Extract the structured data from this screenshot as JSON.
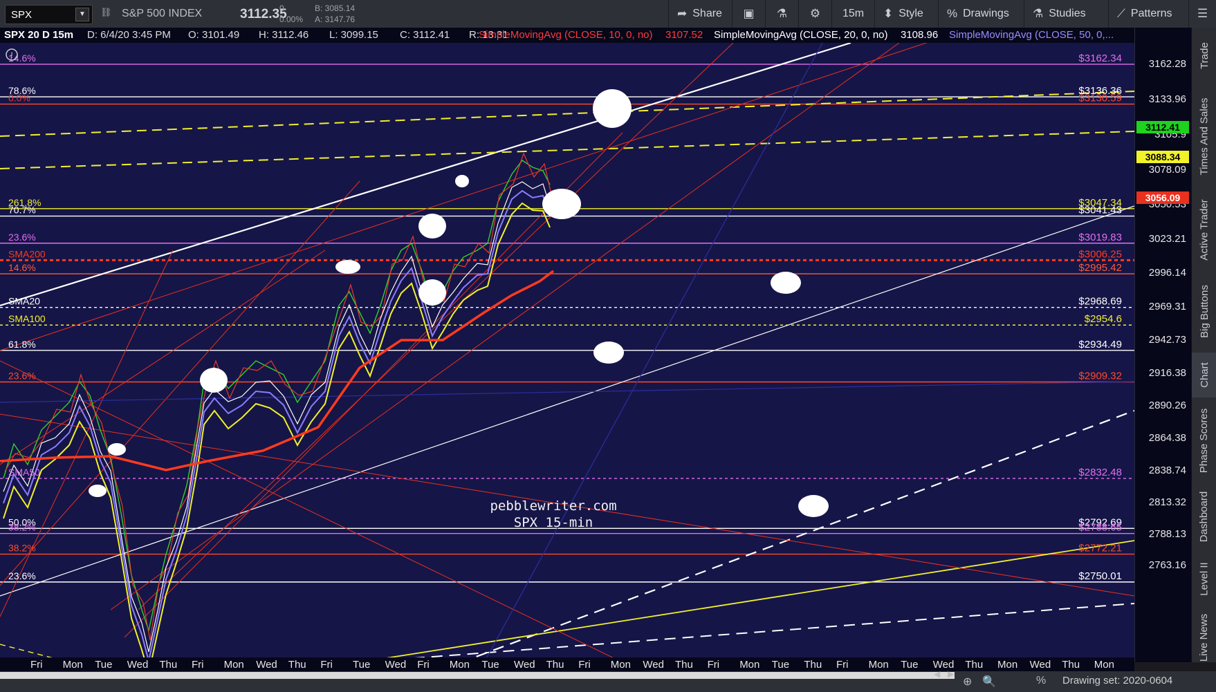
{
  "toolbar": {
    "symbol": "SPX",
    "index_name": "S&P 500 INDEX",
    "last": "3112.35",
    "change": "0",
    "change_pct": "0.00%",
    "bid": "B: 3085.14",
    "ask": "A: 3147.76",
    "buttons": {
      "share": "Share",
      "timeframe": "15m",
      "style": "Style",
      "drawings": "Drawings",
      "studies": "Studies",
      "patterns": "Patterns"
    }
  },
  "header": {
    "title": "SPX 20 D 15m",
    "date": "D: 6/4/20 3:45 PM",
    "open": "O: 3101.49",
    "high": "H: 3112.46",
    "low": "L: 3099.15",
    "close": "C: 3112.41",
    "range": "R: 13.31",
    "sma10_label": "SimpleMovingAvg (CLOSE, 10, 0, no)",
    "sma10_val": "3107.52",
    "sma20_label": "SimpleMovingAvg (CLOSE, 20, 0, no)",
    "sma20_val": "3108.96",
    "sma50_label": "SimpleMovingAvg (CLOSE, 50, 0,..."
  },
  "watermark": {
    "line1": "pebblewriter.com",
    "line2": "SPX 15-min"
  },
  "price_axis": {
    "ticks": [
      "3162.28",
      "3133.96",
      "3105.9",
      "3078.09",
      "3050.53",
      "3023.21",
      "2996.14",
      "2969.31",
      "2942.73",
      "2916.38",
      "2890.26",
      "2864.38",
      "2838.74",
      "2813.32",
      "2788.13",
      "2763.16"
    ],
    "badges": [
      {
        "text": "3112.41",
        "bg": "#1ed21e",
        "fg": "#000000"
      },
      {
        "text": "3088.34",
        "bg": "#f2f22a",
        "fg": "#000000"
      },
      {
        "text": "3056.09",
        "bg": "#e8311f",
        "fg": "#ffffff"
      }
    ]
  },
  "levels": {
    "left": [
      {
        "text": "14.6%",
        "color": "#e070f0"
      },
      {
        "text": "78.6%",
        "color": "#ffffff"
      },
      {
        "text": "0.0%",
        "color": "#e83a2a"
      },
      {
        "text": "261.8%",
        "color": "#f2f22a"
      },
      {
        "text": "70.7%",
        "color": "#ffffff"
      },
      {
        "text": "23.6%",
        "color": "#e070f0"
      },
      {
        "text": "SMA200",
        "color": "#ff3b1f"
      },
      {
        "text": "14.6%",
        "color": "#ff5a3a"
      },
      {
        "text": "SMA20",
        "color": "#ffffff"
      },
      {
        "text": "SMA100",
        "color": "#f2f22a"
      },
      {
        "text": "61.8%",
        "color": "#ffffff"
      },
      {
        "text": "23.6%",
        "color": "#ff4a2a"
      },
      {
        "text": "SMA50",
        "color": "#e070f0"
      },
      {
        "text": "50.0%",
        "color": "#ffffff"
      },
      {
        "text": "38.2%",
        "color": "#e070f0"
      },
      {
        "text": "38.2%",
        "color": "#ff4a2a"
      },
      {
        "text": "23.6%",
        "color": "#ffffff"
      }
    ],
    "right": [
      {
        "text": "$3162.34",
        "color": "#e070f0"
      },
      {
        "text": "$3136.36",
        "color": "#ffffff"
      },
      {
        "text": "$3130.59",
        "color": "#ff4a2a"
      },
      {
        "text": "$3047.34",
        "color": "#f2f22a"
      },
      {
        "text": "$3041.43",
        "color": "#ffffff"
      },
      {
        "text": "$3019.83",
        "color": "#e070f0"
      },
      {
        "text": "$3006.25",
        "color": "#ff3b1f"
      },
      {
        "text": "$2995.42",
        "color": "#ff5a3a"
      },
      {
        "text": "$2968.69",
        "color": "#ffffff"
      },
      {
        "text": "$2954.6",
        "color": "#f2f22a"
      },
      {
        "text": "$2934.49",
        "color": "#ffffff"
      },
      {
        "text": "$2909.32",
        "color": "#ff4a2a"
      },
      {
        "text": "$2832.48",
        "color": "#e070f0"
      },
      {
        "text": "$2792.69",
        "color": "#ffffff"
      },
      {
        "text": "$2788.65",
        "color": "#e070f0"
      },
      {
        "text": "$2772.21",
        "color": "#ff4a2a"
      },
      {
        "text": "$2750.01",
        "color": "#ffffff"
      }
    ]
  },
  "time_axis": [
    "Fri",
    "Mon",
    "Tue",
    "Wed",
    "Thu",
    "Fri",
    "Mon",
    "Wed",
    "Thu",
    "Fri",
    "Tue",
    "Wed",
    "Fri",
    "Mon",
    "Tue",
    "Wed",
    "Thu",
    "Fri",
    "Mon",
    "Wed",
    "Thu",
    "Fri",
    "Mon",
    "Tue",
    "Thu",
    "Fri",
    "Mon",
    "Tue",
    "Wed",
    "Thu",
    "Mon",
    "Wed",
    "Thu",
    "Mon"
  ],
  "side_tabs": [
    "Trade",
    "Times And Sales",
    "Active Trader",
    "Big Buttons",
    "Chart",
    "Phase Scores",
    "Dashboard",
    "Level II",
    "Live News"
  ],
  "bottom": {
    "drawing_set": "Drawing set: 2020-0604"
  },
  "colors": {
    "chart_bg": "#161547",
    "accent_red": "#e8311f",
    "accent_yellow": "#f2f22a"
  }
}
